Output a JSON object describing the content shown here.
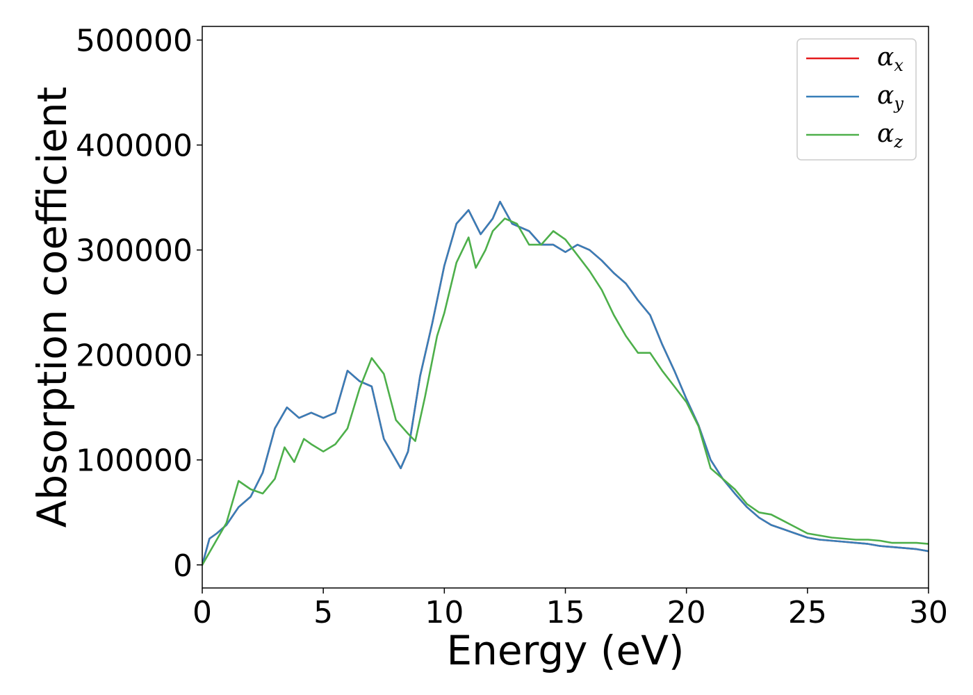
{
  "chart_data": {
    "type": "line",
    "xlabel": "Energy (eV)",
    "ylabel": "Absorption coefficient",
    "xlim": [
      0,
      30
    ],
    "ylim": [
      -22000,
      513000
    ],
    "xticks": [
      0,
      5,
      10,
      15,
      20,
      25,
      30
    ],
    "xtick_labels": [
      "0",
      "5",
      "10",
      "15",
      "20",
      "25",
      "30"
    ],
    "yticks": [
      0,
      100000,
      200000,
      300000,
      400000,
      500000
    ],
    "ytick_labels": [
      "0",
      "100000",
      "200000",
      "300000",
      "400000",
      "500000"
    ],
    "grid": false,
    "legend_position": "top-right",
    "series": [
      {
        "name": "αx",
        "legend_symbol": "α",
        "legend_subscript": "x",
        "color": "#e41a1c",
        "x": [
          0,
          0.3,
          0.6,
          1.0,
          1.5,
          2.0,
          2.5,
          3.0,
          3.5,
          4.0,
          4.5,
          5.0,
          5.5,
          6.0,
          6.5,
          7.0,
          7.5,
          8.0,
          8.2,
          8.5,
          9.0,
          9.5,
          10.0,
          10.5,
          11.0,
          11.5,
          12.0,
          12.3,
          12.8,
          13.5,
          14.0,
          14.5,
          15.0,
          15.5,
          16.0,
          16.5,
          17.0,
          17.5,
          18.0,
          18.5,
          19.0,
          19.5,
          20.0,
          20.5,
          21.0,
          21.5,
          22.0,
          22.5,
          23.0,
          23.5,
          24.0,
          24.5,
          25.0,
          25.5,
          26.0,
          26.5,
          27.0,
          27.5,
          28.0,
          28.5,
          29.0,
          29.5,
          30.0
        ],
        "y": [
          0,
          25000,
          30000,
          38000,
          55000,
          65000,
          88000,
          130000,
          150000,
          140000,
          145000,
          140000,
          145000,
          185000,
          175000,
          170000,
          120000,
          100000,
          92000,
          108000,
          180000,
          230000,
          285000,
          325000,
          338000,
          315000,
          330000,
          346000,
          325000,
          318000,
          305000,
          305000,
          298000,
          305000,
          300000,
          290000,
          278000,
          268000,
          252000,
          238000,
          210000,
          185000,
          158000,
          133000,
          100000,
          82000,
          68000,
          55000,
          45000,
          38000,
          34000,
          30000,
          26000,
          24000,
          23000,
          22000,
          21000,
          20000,
          18000,
          17000,
          16000,
          15000,
          13000
        ]
      },
      {
        "name": "αy",
        "legend_symbol": "α",
        "legend_subscript": "y",
        "color": "#377eb8",
        "x": [
          0,
          0.3,
          0.6,
          1.0,
          1.5,
          2.0,
          2.5,
          3.0,
          3.5,
          4.0,
          4.5,
          5.0,
          5.5,
          6.0,
          6.5,
          7.0,
          7.5,
          8.0,
          8.2,
          8.5,
          9.0,
          9.5,
          10.0,
          10.5,
          11.0,
          11.5,
          12.0,
          12.3,
          12.8,
          13.5,
          14.0,
          14.5,
          15.0,
          15.5,
          16.0,
          16.5,
          17.0,
          17.5,
          18.0,
          18.5,
          19.0,
          19.5,
          20.0,
          20.5,
          21.0,
          21.5,
          22.0,
          22.5,
          23.0,
          23.5,
          24.0,
          24.5,
          25.0,
          25.5,
          26.0,
          26.5,
          27.0,
          27.5,
          28.0,
          28.5,
          29.0,
          29.5,
          30.0
        ],
        "y": [
          0,
          25000,
          30000,
          38000,
          55000,
          65000,
          88000,
          130000,
          150000,
          140000,
          145000,
          140000,
          145000,
          185000,
          175000,
          170000,
          120000,
          100000,
          92000,
          108000,
          180000,
          230000,
          285000,
          325000,
          338000,
          315000,
          330000,
          346000,
          325000,
          318000,
          305000,
          305000,
          298000,
          305000,
          300000,
          290000,
          278000,
          268000,
          252000,
          238000,
          210000,
          185000,
          158000,
          133000,
          100000,
          82000,
          68000,
          55000,
          45000,
          38000,
          34000,
          30000,
          26000,
          24000,
          23000,
          22000,
          21000,
          20000,
          18000,
          17000,
          16000,
          15000,
          13000
        ]
      },
      {
        "name": "αz",
        "legend_symbol": "α",
        "legend_subscript": "z",
        "color": "#4daf4a",
        "x": [
          0,
          0.5,
          1.0,
          1.5,
          2.0,
          2.5,
          3.0,
          3.4,
          3.8,
          4.2,
          4.5,
          5.0,
          5.5,
          6.0,
          6.5,
          7.0,
          7.5,
          8.0,
          8.5,
          8.8,
          9.2,
          9.7,
          10.0,
          10.5,
          11.0,
          11.3,
          11.7,
          12.0,
          12.5,
          13.0,
          13.5,
          14.0,
          14.5,
          15.0,
          15.5,
          16.0,
          16.5,
          17.0,
          17.5,
          18.0,
          18.5,
          19.0,
          19.5,
          20.0,
          20.5,
          21.0,
          21.5,
          22.0,
          22.5,
          23.0,
          23.5,
          24.0,
          24.5,
          25.0,
          25.5,
          26.0,
          26.5,
          27.0,
          27.5,
          28.0,
          28.5,
          29.0,
          29.5,
          30.0
        ],
        "y": [
          0,
          20000,
          40000,
          80000,
          72000,
          68000,
          82000,
          112000,
          98000,
          120000,
          115000,
          108000,
          115000,
          130000,
          168000,
          197000,
          182000,
          138000,
          125000,
          118000,
          160000,
          218000,
          240000,
          288000,
          312000,
          283000,
          300000,
          318000,
          330000,
          325000,
          305000,
          305000,
          318000,
          310000,
          295000,
          280000,
          262000,
          238000,
          218000,
          202000,
          202000,
          185000,
          170000,
          155000,
          132000,
          92000,
          82000,
          72000,
          58000,
          50000,
          48000,
          42000,
          36000,
          30000,
          28000,
          26000,
          25000,
          24000,
          24000,
          23000,
          21000,
          21000,
          21000,
          20000
        ]
      }
    ]
  }
}
